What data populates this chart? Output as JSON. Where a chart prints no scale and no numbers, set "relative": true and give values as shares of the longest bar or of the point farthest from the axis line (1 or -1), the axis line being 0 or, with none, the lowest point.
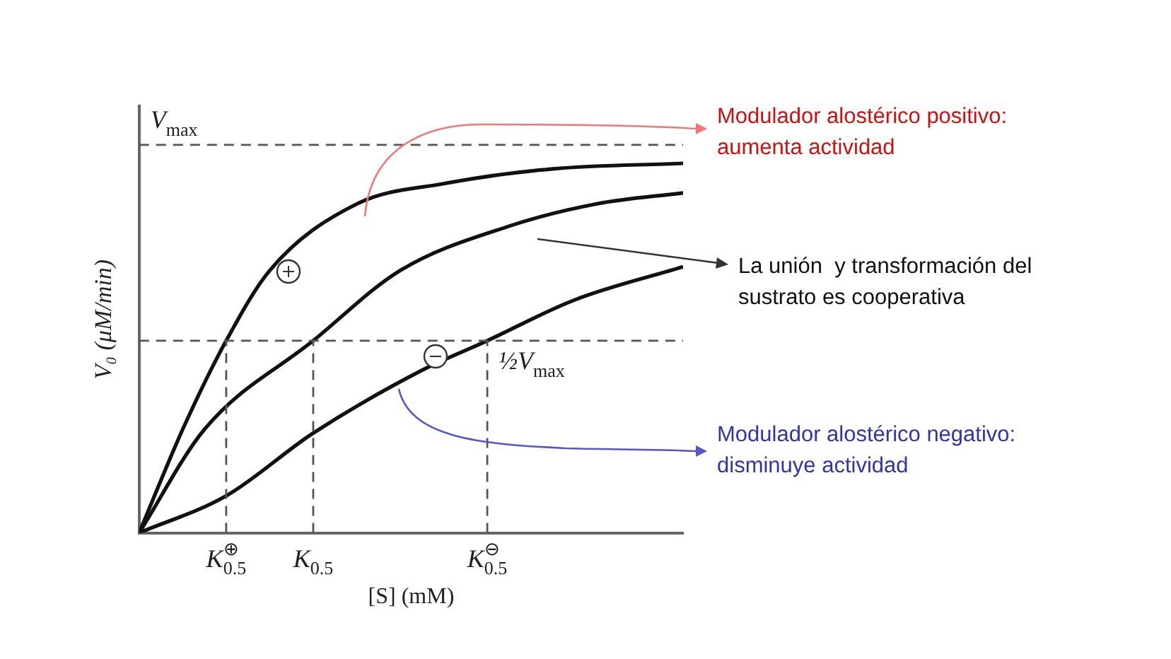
{
  "chart_data": {
    "type": "line",
    "relative": true,
    "xlabel": "[S] (mM)",
    "ylabel": "V₀ (μM/min)",
    "marker": "none",
    "line_style": "solid",
    "categories": [
      null,
      null,
      null,
      null,
      "K$_{0.5}$$^{⊕}$",
      null,
      null,
      null,
      "K$_{0.5}$",
      null,
      null,
      null,
      null,
      null,
      null,
      null,
      "K$_{0.5}$$^{⊖}$",
      null,
      null,
      null,
      null,
      null,
      null,
      null,
      null,
      null
    ],
    "series": [
      {
        "color": "#111111",
        "values": [
          0,
          null,
          0.28,
          null,
          0.52,
          null,
          0.71,
          null,
          null,
          null,
          0.89,
          null,
          null,
          null,
          0.945,
          null,
          null,
          null,
          null,
          0.985,
          null,
          null,
          null,
          null,
          null,
          1
        ]
      },
      {
        "color": "#111111",
        "values": [
          0,
          null,
          null,
          0.28,
          null,
          null,
          null,
          null,
          0.52,
          null,
          null,
          null,
          0.71,
          null,
          null,
          null,
          null,
          0.83,
          null,
          null,
          null,
          0.89,
          null,
          null,
          null,
          0.92
        ]
      },
      {
        "color": "#111111",
        "values": [
          0,
          null,
          null,
          null,
          0.1,
          null,
          null,
          null,
          0.27,
          null,
          null,
          null,
          null,
          0.44,
          null,
          null,
          0.52,
          null,
          null,
          null,
          0.63,
          null,
          null,
          null,
          null,
          0.72
        ]
      }
    ],
    "ref_lines": [
      {
        "axis": "y",
        "value": 1.05,
        "label": "V$_{max}$",
        "color": "#555555",
        "line_style": "dashed"
      },
      {
        "axis": "y",
        "value": 0.52,
        "label": "½V$_{max}$",
        "color": "#555555",
        "line_style": "dashed"
      },
      {
        "axis": "x",
        "value": "K$_{0.5}$$^{⊕}$",
        "label": null,
        "color": "#555555",
        "line_style": "dashed"
      },
      {
        "axis": "x",
        "value": "K$_{0.5}$",
        "label": null,
        "color": "#555555",
        "line_style": "dashed"
      },
      {
        "axis": "x",
        "value": "K$_{0.5}$$^{⊖}$",
        "label": null,
        "color": "#555555",
        "line_style": "dashed"
      }
    ],
    "annotations": [
      "Modulador alostérico positivo: aumenta actividad",
      "La unión  y transformación del sustrato es cooperativa",
      "Modulador alostérico negativo: disminuye actividad"
    ]
  }
}
